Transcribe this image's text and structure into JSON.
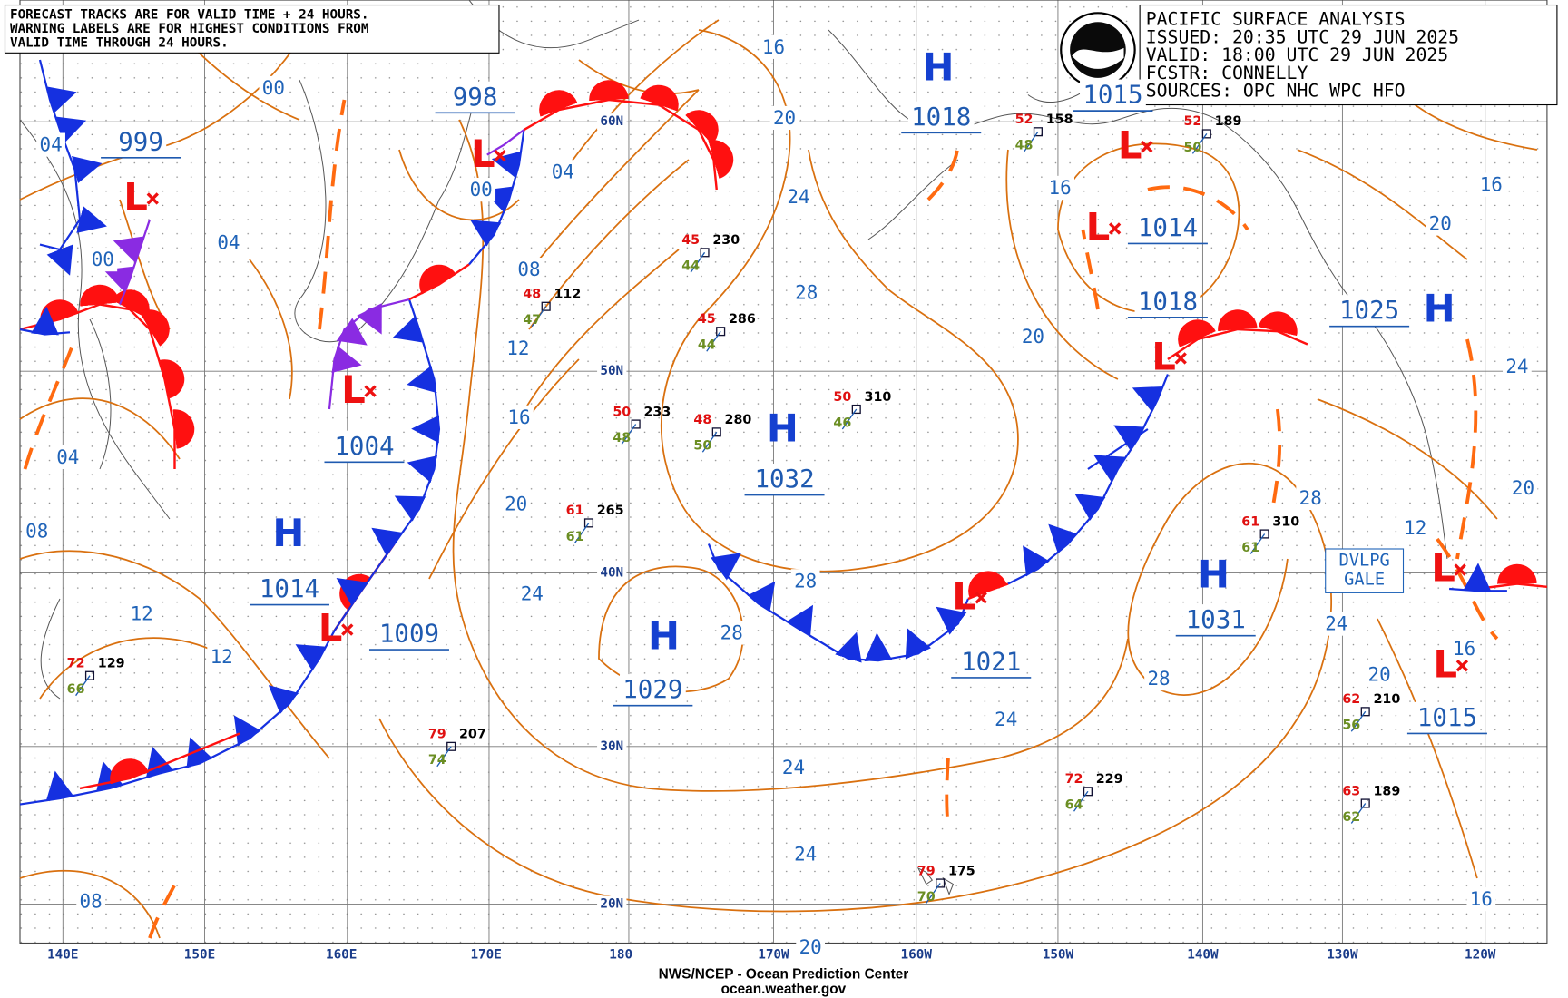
{
  "note": {
    "lines": [
      "FORECAST TRACKS ARE FOR VALID TIME + 24 HOURS.",
      "WARNING LABELS ARE FOR HIGHEST CONDITIONS FROM",
      "VALID TIME THROUGH 24 HOURS."
    ]
  },
  "header": {
    "lines": [
      "PACIFIC SURFACE ANALYSIS",
      "ISSUED: 20:35 UTC 29 JUN 2025",
      "VALID:  18:00 UTC 29 JUN 2025",
      "FCSTR:  CONNELLY",
      "SOURCES: OPC NHC WPC HFO"
    ]
  },
  "footer": {
    "lines": [
      "NWS/NCEP - Ocean Prediction Center",
      "ocean.weather.gov"
    ]
  },
  "longitude_labels": [
    "140E",
    "150E",
    "160E",
    "170E",
    "180",
    "170W",
    "160W",
    "150W",
    "140W",
    "130W",
    "120W"
  ],
  "latitude_labels": [
    "60N",
    "50N",
    "40N",
    "30N",
    "20N"
  ],
  "highs": [
    {
      "symbol": "H",
      "pressure": 1018
    },
    {
      "symbol": "H",
      "pressure": 1032
    },
    {
      "symbol": "H",
      "pressure": 1014
    },
    {
      "symbol": "H",
      "pressure": 1029
    },
    {
      "symbol": "H",
      "pressure": 1031
    },
    {
      "symbol": "H",
      "pressure": 1025
    }
  ],
  "lows": [
    {
      "symbol": "L",
      "pressure": 999
    },
    {
      "symbol": "L",
      "pressure": 998
    },
    {
      "symbol": "L",
      "pressure": 1004
    },
    {
      "symbol": "L",
      "pressure": 1009
    },
    {
      "symbol": "L",
      "pressure": 1015
    },
    {
      "symbol": "L",
      "pressure": 1014
    },
    {
      "symbol": "L",
      "pressure": 1018
    },
    {
      "symbol": "L",
      "pressure": 1021
    },
    {
      "symbol": "L"
    },
    {
      "symbol": "L",
      "pressure": 1015
    }
  ],
  "isobar_labels": [
    "16",
    "20",
    "24",
    "28",
    "28",
    "28",
    "24",
    "20",
    "16",
    "12",
    "08",
    "04",
    "00",
    "00",
    "04",
    "00",
    "04",
    "04",
    "08",
    "12",
    "12",
    "24",
    "24",
    "20",
    "24",
    "28",
    "24",
    "20",
    "16",
    "16",
    "20",
    "24",
    "20",
    "16",
    "20",
    "16",
    "28",
    "12",
    "08"
  ],
  "warning": {
    "lines": [
      "DVLPG",
      "GALE"
    ]
  },
  "stations": [
    {
      "temperature": "48",
      "pressure": "112",
      "dewpoint": "47"
    },
    {
      "temperature": "45",
      "pressure": "230",
      "dewpoint": "44"
    },
    {
      "temperature": "45",
      "pressure": "286",
      "dewpoint": "44"
    },
    {
      "temperature": "50",
      "pressure": "233",
      "dewpoint": "48"
    },
    {
      "temperature": "48",
      "pressure": "280",
      "dewpoint": "50"
    },
    {
      "temperature": "50",
      "pressure": "310",
      "dewpoint": "46"
    },
    {
      "temperature": "61",
      "pressure": "265",
      "dewpoint": "61"
    },
    {
      "temperature": "79",
      "pressure": "207",
      "dewpoint": "74"
    },
    {
      "temperature": "72",
      "pressure": "129",
      "dewpoint": "66"
    },
    {
      "temperature": "72",
      "pressure": "229",
      "dewpoint": "64"
    },
    {
      "temperature": "79",
      "pressure": "175",
      "dewpoint": "70"
    },
    {
      "temperature": "61",
      "pressure": "310",
      "dewpoint": "61"
    },
    {
      "temperature": "63",
      "pressure": "189",
      "dewpoint": "62"
    },
    {
      "temperature": "62",
      "pressure": "210",
      "dewpoint": "56"
    },
    {
      "temperature": "52",
      "pressure": "189",
      "dewpoint": "50"
    },
    {
      "temperature": "52",
      "pressure": "158",
      "dewpoint": "48"
    }
  ]
}
